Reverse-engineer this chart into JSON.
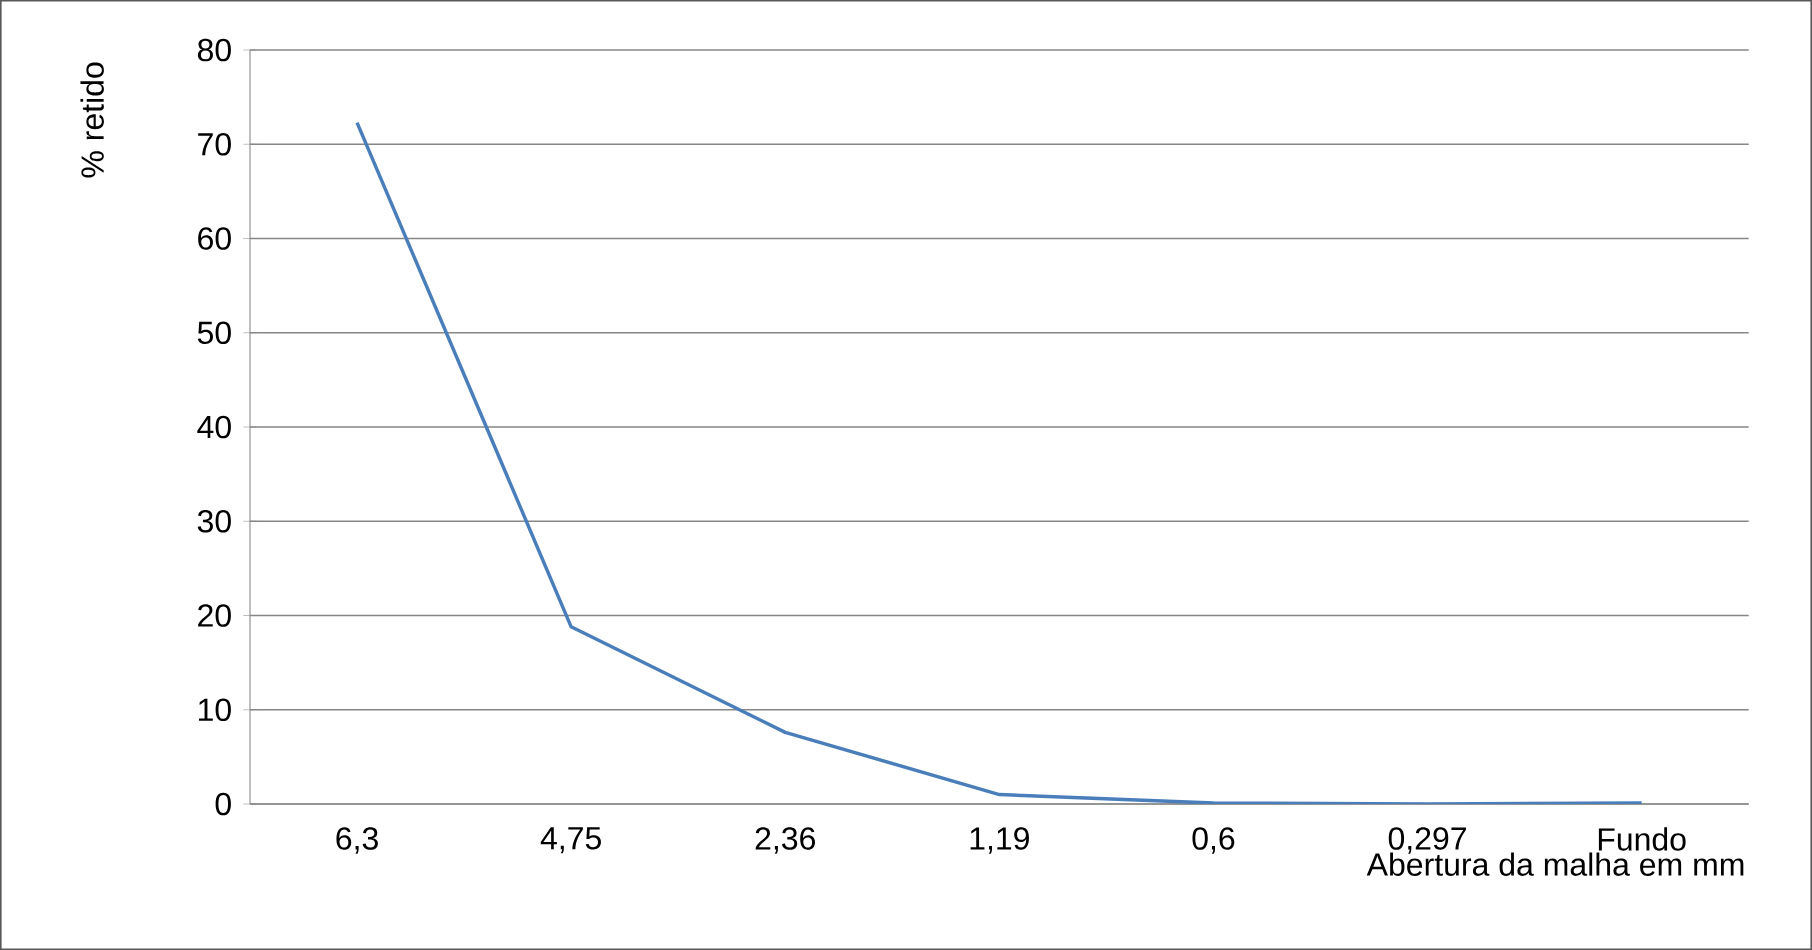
{
  "chart_data": {
    "type": "line",
    "xlabel": "Abertura da malha em mm",
    "ylabel": "% retido",
    "categories": [
      "6,3",
      "4,75",
      "2,36",
      "1,19",
      "0,6",
      "0,297",
      "Fundo"
    ],
    "series": [
      {
        "color": "#4a7ebb",
        "values": [
          72.3,
          18.8,
          7.6,
          1.0,
          0.1,
          0.0,
          0.1
        ]
      }
    ],
    "ylim": [
      0,
      80
    ],
    "yticks": [
      0,
      10,
      20,
      30,
      40,
      50,
      60,
      70,
      80
    ],
    "grid": "y",
    "marker": "none",
    "line_style": "solid"
  }
}
